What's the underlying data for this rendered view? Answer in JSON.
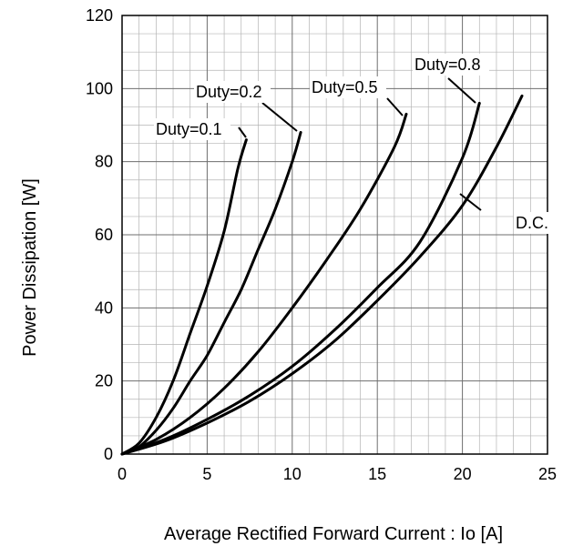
{
  "chart_data": {
    "type": "line",
    "title": "",
    "xlabel": "Average Rectified Forward Current : Io [A]",
    "ylabel": "Power Dissipation [W]",
    "xlim": [
      0,
      25
    ],
    "ylim": [
      0,
      120
    ],
    "x_ticks": [
      "0",
      "5",
      "10",
      "15",
      "20",
      "25"
    ],
    "y_ticks": [
      "0",
      "20",
      "40",
      "60",
      "80",
      "100",
      "120"
    ],
    "grid": true,
    "series": [
      {
        "name": "Duty=0.1",
        "x": [
          0,
          1,
          2,
          3,
          4,
          5,
          6,
          6.8,
          7.3
        ],
        "y": [
          0,
          3,
          10,
          20,
          33,
          46,
          61,
          78,
          86
        ]
      },
      {
        "name": "Duty=0.2",
        "x": [
          0,
          1,
          2,
          3,
          4,
          5,
          6,
          7,
          8,
          9,
          10,
          10.5
        ],
        "y": [
          0,
          2,
          6.5,
          12.5,
          20,
          27,
          36,
          45,
          56,
          67,
          80,
          88
        ]
      },
      {
        "name": "Duty=0.5",
        "x": [
          0,
          2,
          4,
          6,
          8,
          10,
          12,
          14,
          16,
          16.7
        ],
        "y": [
          0,
          4,
          10,
          18,
          28,
          40,
          53,
          67,
          84,
          93
        ]
      },
      {
        "name": "Duty=0.8",
        "x": [
          0,
          2.5,
          5,
          7.5,
          10,
          12.5,
          15,
          17.5,
          20,
          21
        ],
        "y": [
          0,
          4,
          9.5,
          16,
          24,
          34,
          45.5,
          58,
          81,
          96
        ]
      },
      {
        "name": "D.C.",
        "x": [
          0,
          2.5,
          5,
          7.5,
          10,
          12.5,
          15,
          17.5,
          20,
          22,
          23.5
        ],
        "y": [
          0,
          3.5,
          8.5,
          14.5,
          22,
          31,
          42,
          54,
          68,
          84,
          98
        ]
      }
    ],
    "annotations": [
      "Duty=0.1",
      "Duty=0.2",
      "Duty=0.5",
      "Duty=0.8",
      "D.C."
    ]
  }
}
